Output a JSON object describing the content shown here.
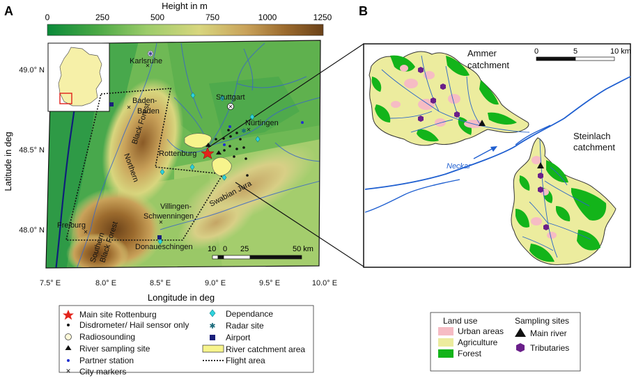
{
  "panel_a": {
    "label": "A",
    "colorbar": {
      "title": "Height in m",
      "ticks": [
        "0",
        "250",
        "500",
        "750",
        "1000",
        "1250"
      ],
      "colors": [
        "#0a8a3a",
        "#4aa845",
        "#9ccc6a",
        "#d8d67e",
        "#c9a25a",
        "#9c6b2e",
        "#6b4219"
      ]
    },
    "x_ticks": [
      "7.5° E",
      "8.0° E",
      "8.5° E",
      "9.0° E",
      "9.5° E",
      "10.0° E"
    ],
    "y_ticks": [
      "49.0° N",
      "48.5° N",
      "48.0° N"
    ],
    "x_label": "Longitude in deg",
    "y_label": "Latitude in deg",
    "places": {
      "karlsruhe": "Karlsruhe",
      "stuttgart": "Stuttgart",
      "baden_1": "Baden-",
      "baden_2": "Baden",
      "nurtingen": "Nürtingen",
      "rottenburg": "Rottenburg",
      "northern_bf_1": "Northern",
      "northern_bf_2": "Black Forest",
      "villingen_1": "Villingen-",
      "villingen_2": "Schwenningen",
      "swabian": "Swabian Jura",
      "freiburg": "Freiburg",
      "southern_bf_1": "Southern",
      "southern_bf_2": "Black Forest",
      "donaueschingen": "Donaueschingen"
    },
    "scalebar": {
      "t0": "10",
      "t1": "0",
      "t2": "25",
      "t3": "50 km"
    }
  },
  "legend_a": {
    "items": [
      {
        "label": "Main site Rottenburg",
        "icon": "red-star"
      },
      {
        "label": "Disdrometer/ Hail sensor only",
        "icon": "black-dot"
      },
      {
        "label": "Radiosounding",
        "icon": "open-circle"
      },
      {
        "label": "River sampling site",
        "icon": "black-triangle"
      },
      {
        "label": "Partner station",
        "icon": "blue-dot"
      },
      {
        "label": "City markers",
        "icon": "black-cross"
      },
      {
        "label": "Dependance",
        "icon": "cyan-diamond"
      },
      {
        "label": "Radar site",
        "icon": "teal-asterisk"
      },
      {
        "label": "Airport",
        "icon": "navy-square"
      },
      {
        "label": "River catchment area",
        "icon": "yellow-box"
      },
      {
        "label": "Flight area",
        "icon": "dotted-line"
      }
    ]
  },
  "panel_b": {
    "label": "B",
    "ammer_1": "Ammer",
    "ammer_2": "catchment",
    "steinlach_1": "Steinlach",
    "steinlach_2": "catchment",
    "neckar": "Neckar",
    "scale": {
      "t0": "0",
      "t1": "5",
      "t2": "10 km"
    }
  },
  "legend_b": {
    "land_use_title": "Land use",
    "land_use": [
      {
        "label": "Urban areas",
        "color": "#f6bcc4"
      },
      {
        "label": "Agriculture",
        "color": "#ecec9e"
      },
      {
        "label": "Forest",
        "color": "#13b41a"
      }
    ],
    "sampling_title": "Sampling sites",
    "sampling": [
      {
        "label": "Main river",
        "icon": "black-triangle"
      },
      {
        "label": "Tributaries",
        "icon": "purple-hexagon"
      }
    ]
  }
}
